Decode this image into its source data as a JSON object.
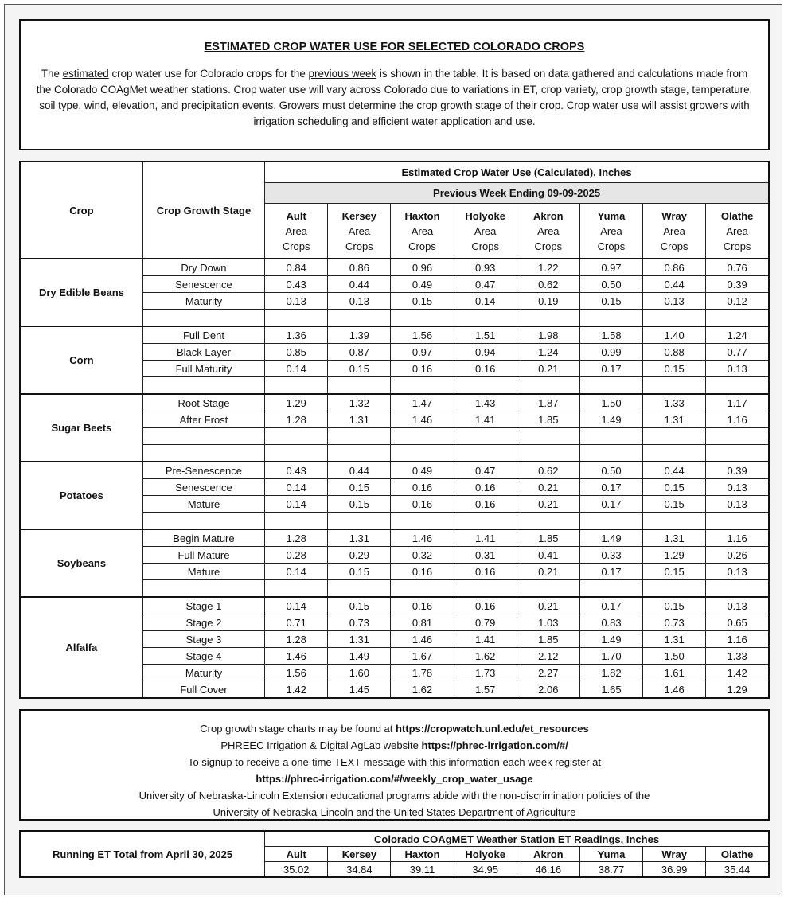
{
  "title": "ESTIMATED CROP WATER USE FOR SELECTED COLORADO CROPS",
  "intro": {
    "p1": "The ",
    "u1": "estimated",
    "p2": " crop water use for Colorado crops for the ",
    "u2": "previous week",
    "p3": " is shown in the table. It is based on data gathered and calculations made from the Colorado COAgMet weather stations. Crop water use will vary across Colorado due to variations in ET, crop variety, crop growth stage, temperature, soil type, wind, elevation, and precipitation events. Growers must determine the crop growth stage of their crop. Crop water use will assist growers with irrigation scheduling and efficient water application and use."
  },
  "table": {
    "header_crop": "Crop",
    "header_stage": "Crop Growth Stage",
    "header_est_u": "Estimated",
    "header_est_rest": " Crop Water Use (Calculated), Inches",
    "header_week": "Previous Week Ending 09-09-2025",
    "area_line1": "Area",
    "area_line2": "Crops",
    "stations": [
      "Ault",
      "Kersey",
      "Haxton",
      "Holyoke",
      "Akron",
      "Yuma",
      "Wray",
      "Olathe"
    ],
    "groups": [
      {
        "crop": "Dry Edible Beans",
        "rows": [
          {
            "stage": "Dry Down",
            "values": [
              "0.84",
              "0.86",
              "0.96",
              "0.93",
              "1.22",
              "0.97",
              "0.86",
              "0.76"
            ]
          },
          {
            "stage": "Senescence",
            "values": [
              "0.43",
              "0.44",
              "0.49",
              "0.47",
              "0.62",
              "0.50",
              "0.44",
              "0.39"
            ]
          },
          {
            "stage": "Maturity",
            "values": [
              "0.13",
              "0.13",
              "0.15",
              "0.14",
              "0.19",
              "0.15",
              "0.13",
              "0.12"
            ]
          },
          {
            "stage": "",
            "values": [
              "",
              "",
              "",
              "",
              "",
              "",
              "",
              ""
            ]
          }
        ]
      },
      {
        "crop": "Corn",
        "rows": [
          {
            "stage": "Full Dent",
            "values": [
              "1.36",
              "1.39",
              "1.56",
              "1.51",
              "1.98",
              "1.58",
              "1.40",
              "1.24"
            ]
          },
          {
            "stage": "Black Layer",
            "values": [
              "0.85",
              "0.87",
              "0.97",
              "0.94",
              "1.24",
              "0.99",
              "0.88",
              "0.77"
            ]
          },
          {
            "stage": "Full Maturity",
            "values": [
              "0.14",
              "0.15",
              "0.16",
              "0.16",
              "0.21",
              "0.17",
              "0.15",
              "0.13"
            ]
          },
          {
            "stage": "",
            "values": [
              "",
              "",
              "",
              "",
              "",
              "",
              "",
              ""
            ]
          }
        ]
      },
      {
        "crop": "Sugar Beets",
        "rows": [
          {
            "stage": "Root Stage",
            "values": [
              "1.29",
              "1.32",
              "1.47",
              "1.43",
              "1.87",
              "1.50",
              "1.33",
              "1.17"
            ]
          },
          {
            "stage": "After Frost",
            "values": [
              "1.28",
              "1.31",
              "1.46",
              "1.41",
              "1.85",
              "1.49",
              "1.31",
              "1.16"
            ]
          },
          {
            "stage": "",
            "values": [
              "",
              "",
              "",
              "",
              "",
              "",
              "",
              ""
            ]
          },
          {
            "stage": "",
            "values": [
              "",
              "",
              "",
              "",
              "",
              "",
              "",
              ""
            ]
          }
        ]
      },
      {
        "crop": "Potatoes",
        "rows": [
          {
            "stage": "Pre-Senescence",
            "values": [
              "0.43",
              "0.44",
              "0.49",
              "0.47",
              "0.62",
              "0.50",
              "0.44",
              "0.39"
            ]
          },
          {
            "stage": "Senescence",
            "values": [
              "0.14",
              "0.15",
              "0.16",
              "0.16",
              "0.21",
              "0.17",
              "0.15",
              "0.13"
            ]
          },
          {
            "stage": "Mature",
            "values": [
              "0.14",
              "0.15",
              "0.16",
              "0.16",
              "0.21",
              "0.17",
              "0.15",
              "0.13"
            ]
          },
          {
            "stage": "",
            "values": [
              "",
              "",
              "",
              "",
              "",
              "",
              "",
              ""
            ]
          }
        ]
      },
      {
        "crop": "Soybeans",
        "rows": [
          {
            "stage": "Begin Mature",
            "values": [
              "1.28",
              "1.31",
              "1.46",
              "1.41",
              "1.85",
              "1.49",
              "1.31",
              "1.16"
            ]
          },
          {
            "stage": "Full Mature",
            "values": [
              "0.28",
              "0.29",
              "0.32",
              "0.31",
              "0.41",
              "0.33",
              "1.29",
              "0.26"
            ]
          },
          {
            "stage": "Mature",
            "values": [
              "0.14",
              "0.15",
              "0.16",
              "0.16",
              "0.21",
              "0.17",
              "0.15",
              "0.13"
            ]
          },
          {
            "stage": "",
            "values": [
              "",
              "",
              "",
              "",
              "",
              "",
              "",
              ""
            ]
          }
        ]
      },
      {
        "crop": "Alfalfa",
        "rows": [
          {
            "stage": "Stage 1",
            "values": [
              "0.14",
              "0.15",
              "0.16",
              "0.16",
              "0.21",
              "0.17",
              "0.15",
              "0.13"
            ]
          },
          {
            "stage": "Stage 2",
            "values": [
              "0.71",
              "0.73",
              "0.81",
              "0.79",
              "1.03",
              "0.83",
              "0.73",
              "0.65"
            ]
          },
          {
            "stage": "Stage 3",
            "values": [
              "1.28",
              "1.31",
              "1.46",
              "1.41",
              "1.85",
              "1.49",
              "1.31",
              "1.16"
            ]
          },
          {
            "stage": "Stage 4",
            "values": [
              "1.46",
              "1.49",
              "1.67",
              "1.62",
              "2.12",
              "1.70",
              "1.50",
              "1.33"
            ]
          },
          {
            "stage": "Maturity",
            "values": [
              "1.56",
              "1.60",
              "1.78",
              "1.73",
              "2.27",
              "1.82",
              "1.61",
              "1.42"
            ]
          },
          {
            "stage": "Full Cover",
            "values": [
              "1.42",
              "1.45",
              "1.62",
              "1.57",
              "2.06",
              "1.65",
              "1.46",
              "1.29"
            ]
          }
        ]
      }
    ]
  },
  "footer": {
    "l1a": "Crop growth stage charts may be found at ",
    "l1b": "https://cropwatch.unl.edu/et_resources",
    "l2a": "PHREEC Irrigation & Digital AgLab website ",
    "l2b": "https://phrec-irrigation.com/#/",
    "l3": "To signup to receive a one-time TEXT message with this information each week register at",
    "l4": "https://phrec-irrigation.com/#/weekly_crop_water_usage",
    "l5": "University of Nebraska-Lincoln Extension educational programs abide with the non-discrimination policies of the",
    "l6": "University of Nebraska-Lincoln and the United States Department of Agriculture"
  },
  "et": {
    "label": "Running ET Total from April 30, 2025",
    "header": "Colorado COAgMET Weather Station ET Readings, Inches",
    "stations": [
      "Ault",
      "Kersey",
      "Haxton",
      "Holyoke",
      "Akron",
      "Yuma",
      "Wray",
      "Olathe"
    ],
    "values": [
      "35.02",
      "34.84",
      "39.11",
      "34.95",
      "46.16",
      "38.77",
      "36.99",
      "35.44"
    ]
  }
}
